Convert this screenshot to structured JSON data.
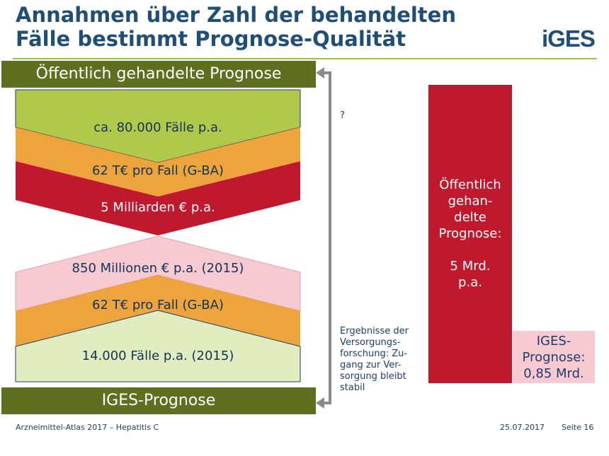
{
  "slide": {
    "title_line1": "Annahmen über Zahl der behandelten",
    "title_line2": "Fälle bestimmt Prognose-Qualität",
    "logo": "iGES"
  },
  "top_band": "Öffentlich gehandelte Prognose",
  "bottom_band": "IGES-Prognose",
  "upper_chevrons": [
    {
      "label": "ca. 80.000 Fälle p.a.",
      "color": "#b1c94b"
    },
    {
      "label": "62 T€ pro Fall (G-BA)",
      "color": "#eda43c"
    },
    {
      "label": "5 Milliarden € p.a.",
      "color": "#c0192e"
    }
  ],
  "lower_chevrons": [
    {
      "label": "850 Millionen € p.a. (2015)",
      "color": "#f7c9d0"
    },
    {
      "label": "62 T€ pro Fall (G-BA)",
      "color": "#eda43c"
    },
    {
      "label": "14.000 Fälle p.a. (2015)",
      "color": "#e1ecbf"
    }
  ],
  "question_mark": "?",
  "arrow_note": [
    "Ergebnisse der",
    "Versorgungs-",
    "forschung: Zu-",
    "gang zur Ver-",
    "sorgung bleibt",
    "stabil"
  ],
  "comparison": {
    "public": {
      "lines": [
        "Öffentlich",
        "gehan-",
        "delte",
        "Prognose:",
        "",
        "5 Mrd.",
        "p.a."
      ],
      "value_mrd": 5,
      "color": "#c0192e"
    },
    "iges": {
      "lines": [
        "IGES-",
        "Prognose:",
        "0,85 Mrd."
      ],
      "value_mrd": 0.85,
      "color": "#f7c9d0"
    }
  },
  "footer": {
    "left": "Arzneimittel-Atlas 2017 – Hepatitis C",
    "date": "25.07.2017",
    "page": "Seite 16"
  }
}
